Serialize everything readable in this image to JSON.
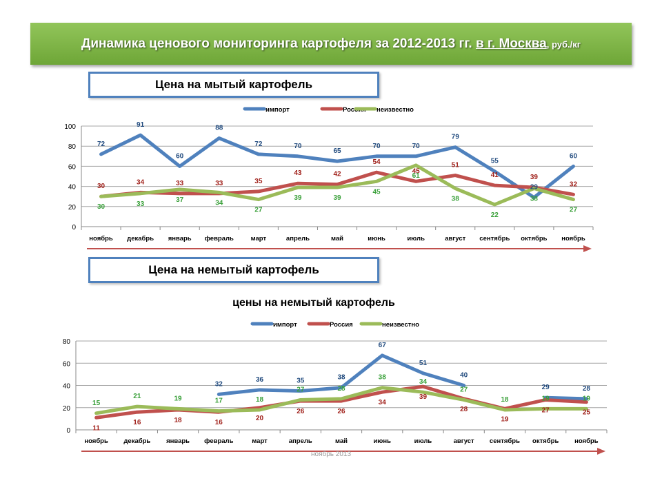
{
  "banner": {
    "title_main": "Динамика ценового мониторинга картофеля за 2012-2013 гг.",
    "title_place": "в г. Москва",
    "title_unit": ", руб./кг"
  },
  "colors": {
    "import": "#4f81bd",
    "russia": "#c0504d",
    "unknown": "#9bbb59",
    "arrow": "#c0504d"
  },
  "chart_data": [
    {
      "type": "line",
      "section_label": "Цена на мытый картофель",
      "title": "",
      "categories": [
        "ноябрь",
        "декабрь",
        "январь",
        "февраль",
        "март",
        "апрель",
        "май",
        "июнь",
        "июль",
        "август",
        "сентябрь",
        "октябрь",
        "ноябрь"
      ],
      "ylim": [
        0,
        100
      ],
      "yticks": [
        0,
        20,
        40,
        60,
        80,
        100
      ],
      "grid": true,
      "legend_position": "top",
      "series": [
        {
          "name": "импорт",
          "key": "import",
          "values": [
            72,
            91,
            60,
            88,
            72,
            70,
            65,
            70,
            70,
            79,
            55,
            29,
            60
          ]
        },
        {
          "name": "Россия",
          "key": "russia",
          "values": [
            30,
            34,
            33,
            33,
            35,
            43,
            42,
            54,
            45,
            51,
            41,
            39,
            32
          ]
        },
        {
          "name": "неизвестно",
          "key": "unknown",
          "values": [
            30,
            33,
            37,
            34,
            27,
            39,
            39,
            45,
            61,
            38,
            22,
            38,
            27
          ]
        }
      ]
    },
    {
      "type": "line",
      "section_label": "Цена на немытый картофель",
      "title": "цены на немытый картофель",
      "categories": [
        "ноябрь",
        "декабрь",
        "январь",
        "февраль",
        "март",
        "апрель",
        "май",
        "июнь",
        "июль",
        "август",
        "сентябрь",
        "октябрь",
        "ноябрь"
      ],
      "ylim": [
        0,
        80
      ],
      "yticks": [
        0,
        20,
        40,
        60,
        80
      ],
      "grid": true,
      "legend_position": "top",
      "footer": "ноябрь 2013",
      "series": [
        {
          "name": "импорт",
          "key": "import",
          "values": [
            null,
            null,
            null,
            32,
            36,
            35,
            38,
            67,
            51,
            40,
            null,
            29,
            28
          ]
        },
        {
          "name": "Россия",
          "key": "russia",
          "values": [
            11,
            16,
            18,
            16,
            20,
            26,
            26,
            34,
            39,
            28,
            19,
            27,
            25
          ]
        },
        {
          "name": "неизвестно",
          "key": "unknown",
          "values": [
            15,
            21,
            19,
            17,
            18,
            27,
            28,
            38,
            34,
            27,
            18,
            19,
            19
          ]
        }
      ]
    }
  ]
}
